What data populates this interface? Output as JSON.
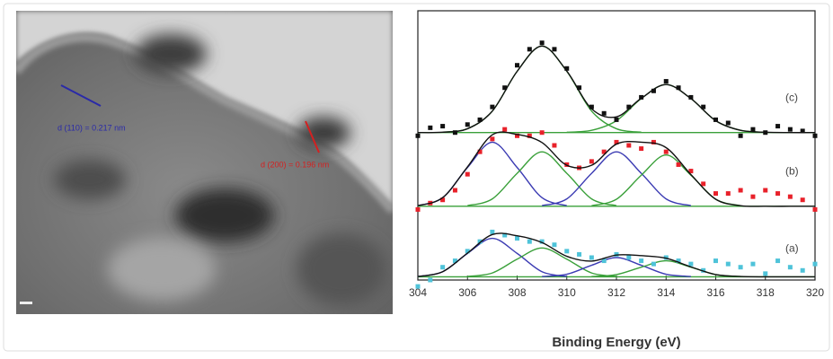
{
  "image": {
    "annotations": [
      {
        "text": "d (110) = 0.217 nm",
        "color": "#2a2aa8"
      },
      {
        "text": "d (200) = 0.196 nm",
        "color": "#d42020"
      }
    ]
  },
  "chart_data": {
    "type": "scatter",
    "xlabel": "Binding Energy (eV)",
    "xlim": [
      304,
      320
    ],
    "xticks": [
      304,
      306,
      308,
      310,
      312,
      314,
      316,
      318,
      320
    ],
    "ylim": [
      16,
      100
    ],
    "series": [
      {
        "mode": "lines",
        "color": "#3aa03a",
        "x": [
          304,
          320
        ],
        "values": [
          62,
          62
        ]
      },
      {
        "mode": "lines",
        "color": "#3aa03a",
        "x": [
          305,
          306,
          307,
          308,
          309,
          310,
          311,
          312,
          313
        ],
        "values": [
          62.1,
          63.2,
          68.7,
          81.1,
          89,
          81.1,
          68.7,
          63.2,
          62.1
        ]
      },
      {
        "mode": "lines",
        "color": "#3aa03a",
        "x": [
          310,
          311,
          312,
          313,
          314,
          315,
          316,
          317,
          318
        ],
        "values": [
          62.1,
          62.7,
          65.7,
          72.6,
          77,
          72.6,
          65.7,
          62.7,
          62.1
        ]
      },
      {
        "name": "(c)",
        "mode": "markers",
        "color": "#111111",
        "x": [
          304,
          304.5,
          305,
          305.5,
          306,
          306.5,
          307,
          307.5,
          308,
          308.5,
          309,
          309.5,
          310,
          310.5,
          311,
          311.5,
          312,
          312.5,
          313,
          313.5,
          314,
          314.5,
          315,
          315.5,
          316,
          316.5,
          317,
          317.5,
          318,
          318.5,
          319,
          319.5,
          320
        ],
        "values": [
          61,
          63.5,
          64,
          62,
          64.5,
          66,
          70,
          76,
          83,
          88,
          90,
          88,
          82,
          76,
          70,
          68,
          66,
          70,
          73,
          75,
          78,
          76,
          73,
          70,
          66,
          65,
          61,
          63,
          62,
          64,
          63,
          62.5,
          61
        ]
      },
      {
        "mode": "lines",
        "color": "#111111",
        "x": [
          304,
          305,
          306,
          307,
          308,
          309,
          310,
          311,
          312,
          313,
          314,
          315,
          316,
          317,
          318,
          319,
          320
        ],
        "values": [
          62,
          62.1,
          63.2,
          68.7,
          81.1,
          89,
          81.2,
          69.4,
          66.9,
          72.7,
          77,
          72.6,
          65.7,
          62.7,
          62.1,
          62,
          62
        ]
      },
      {
        "mode": "lines",
        "color": "#3aa03a",
        "x": [
          304,
          320
        ],
        "values": [
          39,
          39
        ]
      },
      {
        "mode": "lines",
        "color": "#3b3bb3",
        "x": [
          304,
          305,
          306,
          307,
          308,
          309,
          310
        ],
        "values": [
          39.2,
          41.7,
          51.1,
          59,
          51.1,
          41.7,
          39.2
        ]
      },
      {
        "mode": "lines",
        "color": "#3aa03a",
        "x": [
          306,
          307,
          308,
          309,
          310,
          311,
          312
        ],
        "values": [
          39.2,
          41.3,
          49.3,
          56,
          49.3,
          41.3,
          39.2
        ]
      },
      {
        "mode": "lines",
        "color": "#3b3bb3",
        "x": [
          309,
          310,
          311,
          312,
          313,
          314,
          315
        ],
        "values": [
          39.2,
          41.3,
          49.3,
          56,
          49.3,
          41.3,
          39.2
        ]
      },
      {
        "mode": "lines",
        "color": "#3aa03a",
        "x": [
          311,
          312,
          313,
          314,
          315,
          316,
          317
        ],
        "values": [
          39.2,
          41.2,
          48.7,
          55,
          48.7,
          41.2,
          39.2
        ]
      },
      {
        "name": "(b)",
        "mode": "markers",
        "color": "#e8212a",
        "x": [
          304,
          304.5,
          305,
          305.5,
          306,
          306.5,
          307,
          307.5,
          308,
          308.5,
          309,
          309.5,
          310,
          310.5,
          311,
          311.5,
          312,
          312.5,
          313,
          313.5,
          314,
          314.5,
          315,
          315.5,
          316,
          316.5,
          317,
          317.5,
          318,
          318.5,
          319,
          319.5,
          320
        ],
        "values": [
          38,
          40,
          41,
          44,
          49,
          56,
          60,
          63,
          61,
          61,
          62,
          58,
          52,
          51,
          53,
          56,
          59,
          58,
          57,
          59,
          56,
          52,
          50,
          46,
          43,
          43,
          44,
          42,
          44,
          43,
          42,
          41,
          38
        ]
      },
      {
        "mode": "lines",
        "color": "#111111",
        "x": [
          304,
          305,
          306,
          307,
          308,
          309,
          310,
          311,
          312,
          313,
          314,
          315,
          316,
          317,
          318,
          319,
          320
        ],
        "values": [
          39.2,
          41.7,
          51.3,
          61.3,
          61.4,
          58.9,
          51.8,
          51.8,
          58.4,
          59,
          57.3,
          48.9,
          41.2,
          39.2,
          39,
          39,
          39
        ]
      },
      {
        "mode": "lines",
        "color": "#3aa03a",
        "x": [
          304,
          320
        ],
        "values": [
          17,
          17
        ]
      },
      {
        "mode": "lines",
        "color": "#3b3bb3",
        "x": [
          304,
          305,
          306,
          307,
          308,
          309,
          310
        ],
        "values": [
          17.1,
          18.6,
          24.3,
          29,
          24.3,
          18.6,
          17.1
        ]
      },
      {
        "mode": "lines",
        "color": "#3aa03a",
        "x": [
          306,
          307,
          308,
          309,
          310,
          311,
          312
        ],
        "values": [
          17.1,
          18.2,
          22.5,
          26,
          22.5,
          18.2,
          17.1
        ]
      },
      {
        "mode": "lines",
        "color": "#3b3bb3",
        "x": [
          309,
          310,
          311,
          312,
          313,
          314,
          315
        ],
        "values": [
          17.1,
          17.8,
          20.6,
          23,
          20.6,
          17.8,
          17.1
        ]
      },
      {
        "mode": "lines",
        "color": "#3aa03a",
        "x": [
          311,
          312,
          313,
          314,
          315,
          316,
          317
        ],
        "values": [
          17.1,
          17.7,
          20,
          22,
          20,
          17.7,
          17.1
        ]
      },
      {
        "name": "(a)",
        "mode": "markers",
        "color": "#4fc3d9",
        "x": [
          304,
          304.5,
          305,
          305.5,
          306,
          306.5,
          307,
          307.5,
          308,
          308.5,
          309,
          309.5,
          310,
          310.5,
          311,
          311.5,
          312,
          312.5,
          313,
          313.5,
          314,
          314.5,
          315,
          315.5,
          316,
          316.5,
          317,
          317.5,
          318,
          318.5,
          319,
          319.5,
          320
        ],
        "values": [
          14,
          16,
          20,
          22,
          25,
          28,
          31,
          30,
          29,
          28,
          28,
          27,
          25,
          24,
          23,
          22,
          24,
          23,
          22,
          21,
          23,
          22,
          21,
          19,
          22,
          21,
          20,
          21,
          18,
          22,
          20,
          19,
          21
        ]
      },
      {
        "mode": "lines",
        "color": "#111111",
        "x": [
          304,
          305,
          306,
          307,
          308,
          309,
          310,
          311,
          312,
          313,
          314,
          315,
          316,
          317,
          318,
          319,
          320
        ],
        "values": [
          17.1,
          18.6,
          24.4,
          30.2,
          29.8,
          27.7,
          23.4,
          21.9,
          23.8,
          23.6,
          22.8,
          20.1,
          17.7,
          17.1,
          17,
          17,
          17
        ]
      }
    ]
  }
}
